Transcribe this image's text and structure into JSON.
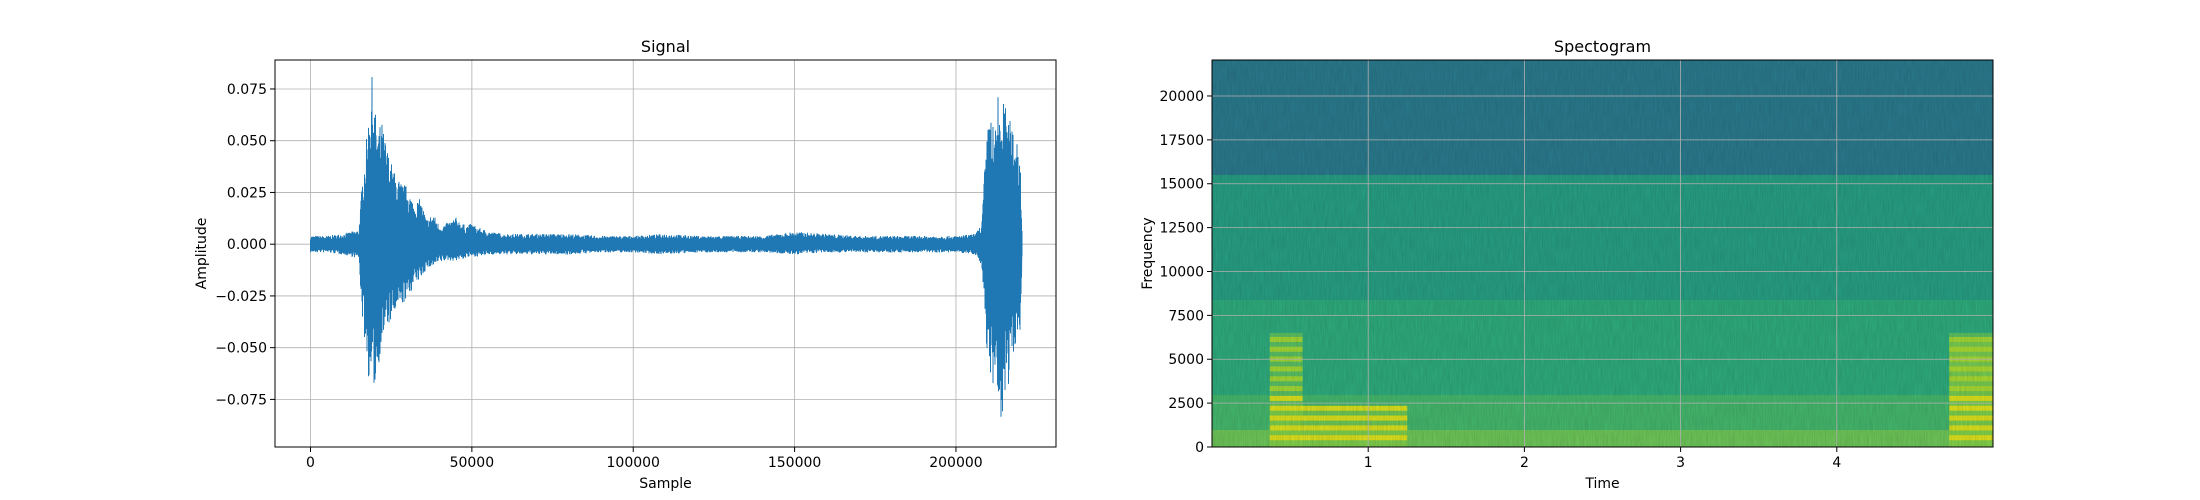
{
  "chart_data": [
    {
      "type": "line",
      "title": "Signal",
      "xlabel": "Sample",
      "ylabel": "Amplitude",
      "xlim": [
        -11000,
        231000
      ],
      "ylim": [
        -0.098,
        0.089
      ],
      "grid": true,
      "line_color": "#1f77b4",
      "x_ticks": [
        0,
        50000,
        100000,
        150000,
        200000
      ],
      "x_tick_labels": [
        "0",
        "50000",
        "100000",
        "150000",
        "200000"
      ],
      "y_ticks": [
        0.075,
        0.05,
        0.025,
        0.0,
        -0.025,
        -0.05,
        -0.075
      ],
      "y_tick_labels": [
        "0.075",
        "0.050",
        "0.025",
        "0.000",
        "−0.025",
        "−0.050",
        "−0.075"
      ],
      "envelope": {
        "sample": [
          0,
          5000,
          10000,
          15000,
          16000,
          17000,
          18000,
          19000,
          20000,
          21000,
          22000,
          24000,
          26000,
          28000,
          30000,
          32000,
          34000,
          36000,
          38000,
          40000,
          42000,
          45000,
          48000,
          50000,
          52000,
          56000,
          60000,
          70000,
          80000,
          90000,
          100000,
          110000,
          120000,
          130000,
          140000,
          150000,
          160000,
          170000,
          180000,
          190000,
          200000,
          206000,
          208000,
          209000,
          210000,
          211000,
          212000,
          213000,
          214000,
          215000,
          216000,
          217000,
          218000,
          219000,
          220000,
          220500
        ],
        "max": [
          0.004,
          0.004,
          0.005,
          0.007,
          0.03,
          0.045,
          0.062,
          0.082,
          0.065,
          0.055,
          0.06,
          0.045,
          0.035,
          0.03,
          0.028,
          0.02,
          0.022,
          0.012,
          0.015,
          0.009,
          0.01,
          0.013,
          0.009,
          0.01,
          0.008,
          0.006,
          0.005,
          0.005,
          0.005,
          0.004,
          0.004,
          0.005,
          0.004,
          0.004,
          0.004,
          0.006,
          0.005,
          0.004,
          0.004,
          0.004,
          0.004,
          0.005,
          0.01,
          0.04,
          0.058,
          0.068,
          0.05,
          0.073,
          0.063,
          0.071,
          0.06,
          0.06,
          0.056,
          0.053,
          0.04,
          0.005
        ],
        "min": [
          -0.004,
          -0.004,
          -0.005,
          -0.007,
          -0.035,
          -0.05,
          -0.065,
          -0.068,
          -0.07,
          -0.06,
          -0.048,
          -0.04,
          -0.035,
          -0.03,
          -0.027,
          -0.02,
          -0.017,
          -0.012,
          -0.011,
          -0.009,
          -0.008,
          -0.008,
          -0.007,
          -0.006,
          -0.006,
          -0.005,
          -0.005,
          -0.005,
          -0.005,
          -0.004,
          -0.004,
          -0.005,
          -0.004,
          -0.004,
          -0.004,
          -0.005,
          -0.004,
          -0.004,
          -0.004,
          -0.004,
          -0.004,
          -0.005,
          -0.012,
          -0.04,
          -0.058,
          -0.07,
          -0.075,
          -0.08,
          -0.089,
          -0.075,
          -0.07,
          -0.062,
          -0.05,
          -0.05,
          -0.04,
          -0.005
        ]
      }
    },
    {
      "type": "heatmap",
      "title": "Spectogram",
      "xlabel": "Time",
      "ylabel": "Frequency",
      "xlim": [
        0.0,
        5.0
      ],
      "ylim": [
        0,
        22050
      ],
      "grid": true,
      "x_ticks": [
        1,
        2,
        3,
        4
      ],
      "x_tick_labels": [
        "1",
        "2",
        "3",
        "4"
      ],
      "y_ticks": [
        0,
        2500,
        5000,
        7500,
        10000,
        12500,
        15000,
        17500,
        20000
      ],
      "y_tick_labels": [
        "0",
        "2500",
        "5000",
        "7500",
        "10000",
        "12500",
        "15000",
        "17500",
        "20000"
      ],
      "colormap": [
        "#440154",
        "#3b528b",
        "#21908d",
        "#5dc963",
        "#fde725"
      ],
      "cutoff_frequency": 15500
    }
  ]
}
